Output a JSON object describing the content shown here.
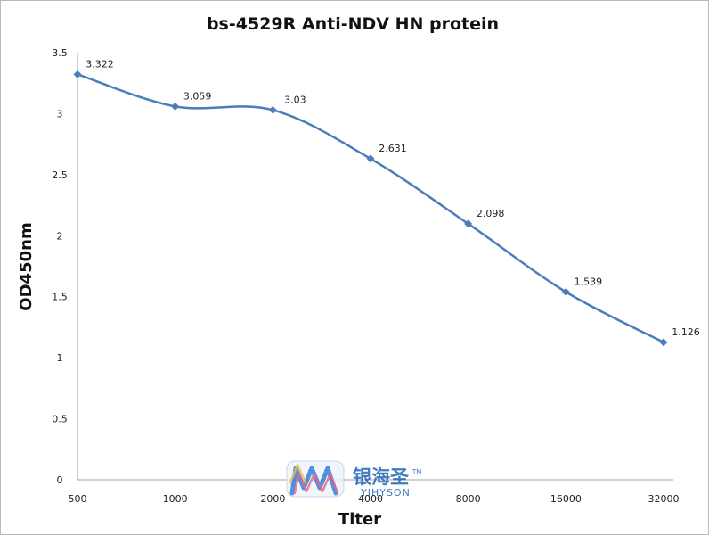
{
  "chart_data": {
    "type": "line",
    "title": "bs-4529R Anti-NDV HN protein",
    "xlabel": "Titer",
    "ylabel": "OD450nm",
    "categories": [
      "500",
      "1000",
      "2000",
      "4000",
      "8000",
      "16000",
      "32000"
    ],
    "values": [
      3.322,
      3.059,
      3.03,
      2.631,
      2.098,
      1.539,
      1.126
    ],
    "data_labels": [
      "3.322",
      "3.059",
      "3.03",
      "2.631",
      "2.098",
      "1.539",
      "1.126"
    ],
    "ylim": [
      0,
      3.5
    ],
    "yticks": [
      "0",
      "0.5",
      "1",
      "1.5",
      "2",
      "2.5",
      "3",
      "3.5"
    ],
    "ytick_values": [
      0,
      0.5,
      1,
      1.5,
      2,
      2.5,
      3,
      3.5
    ],
    "grid": false,
    "legend": "none",
    "series_color": "#4a7ebb",
    "marker": "diamond",
    "smooth": true
  },
  "watermark": {
    "chinese_text": "银海圣",
    "latin_text": "YIHYSON",
    "trademark": "TM",
    "logo_icon": "yihyson-logo-icon"
  }
}
